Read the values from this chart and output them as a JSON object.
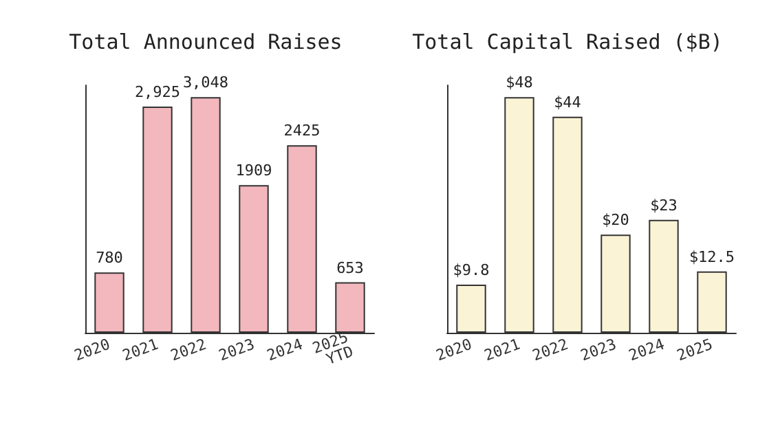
{
  "chart_data": [
    {
      "type": "bar",
      "title": "Total Announced Raises",
      "categories": [
        "2020",
        "2021",
        "2022",
        "2023",
        "2024",
        "2025\nYTD"
      ],
      "values": [
        780,
        2925,
        3048,
        1909,
        2425,
        653
      ],
      "value_labels": [
        "780",
        "2,925",
        "3,048",
        "1909",
        "2425",
        "653"
      ],
      "color": "#f2b8bd",
      "grid": false
    },
    {
      "type": "bar",
      "title": "Total Capital Raised ($B)",
      "categories": [
        "2020",
        "2021",
        "2022",
        "2023",
        "2024",
        "2025"
      ],
      "values": [
        9.8,
        48,
        44,
        20,
        23,
        12.5
      ],
      "value_labels": [
        "$9.8",
        "$48",
        "$44",
        "$20",
        "$23",
        "$12.5"
      ],
      "color": "#fbf3d5",
      "grid": false
    }
  ]
}
